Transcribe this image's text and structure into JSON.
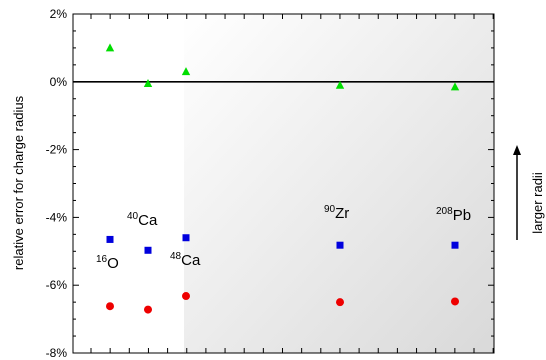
{
  "chart_data": {
    "type": "scatter",
    "title": "",
    "xlabel": "",
    "ylabel": "relative error for charge radius",
    "y_unit": "%",
    "ylim": [
      -8,
      2
    ],
    "y_ticks": [
      "2%",
      "0%",
      "-2%",
      "-4%",
      "-6%",
      "-8%"
    ],
    "y_tick_values": [
      2,
      0,
      -2,
      -4,
      -6,
      -8
    ],
    "grid": false,
    "reference_line_y": 0,
    "categories": [
      "16O",
      "40Ca",
      "48Ca",
      "90Zr",
      "208Pb"
    ],
    "x_positions": [
      16,
      40,
      48,
      90,
      208
    ],
    "series": [
      {
        "marker": "triangle",
        "color": "#00dd00",
        "values": [
          1.0,
          -0.05,
          0.3,
          -0.1,
          -0.15
        ]
      },
      {
        "marker": "square",
        "color": "#0000dd",
        "values": [
          -4.65,
          -4.97,
          -4.6,
          -4.82,
          -4.82
        ]
      },
      {
        "marker": "circle",
        "color": "#ee0000",
        "values": [
          -6.62,
          -6.72,
          -6.32,
          -6.5,
          -6.48
        ]
      }
    ],
    "nucleus_labels": [
      {
        "mass": "16",
        "symbol": "O"
      },
      {
        "mass": "40",
        "symbol": "Ca"
      },
      {
        "mass": "48",
        "symbol": "Ca"
      },
      {
        "mass": "90",
        "symbol": "Zr"
      },
      {
        "mass": "208",
        "symbol": "Pb"
      }
    ],
    "annotation": "larger radii"
  },
  "colors": {
    "shade_start": "#ffffff",
    "shade_end": "#d9d9d9"
  }
}
